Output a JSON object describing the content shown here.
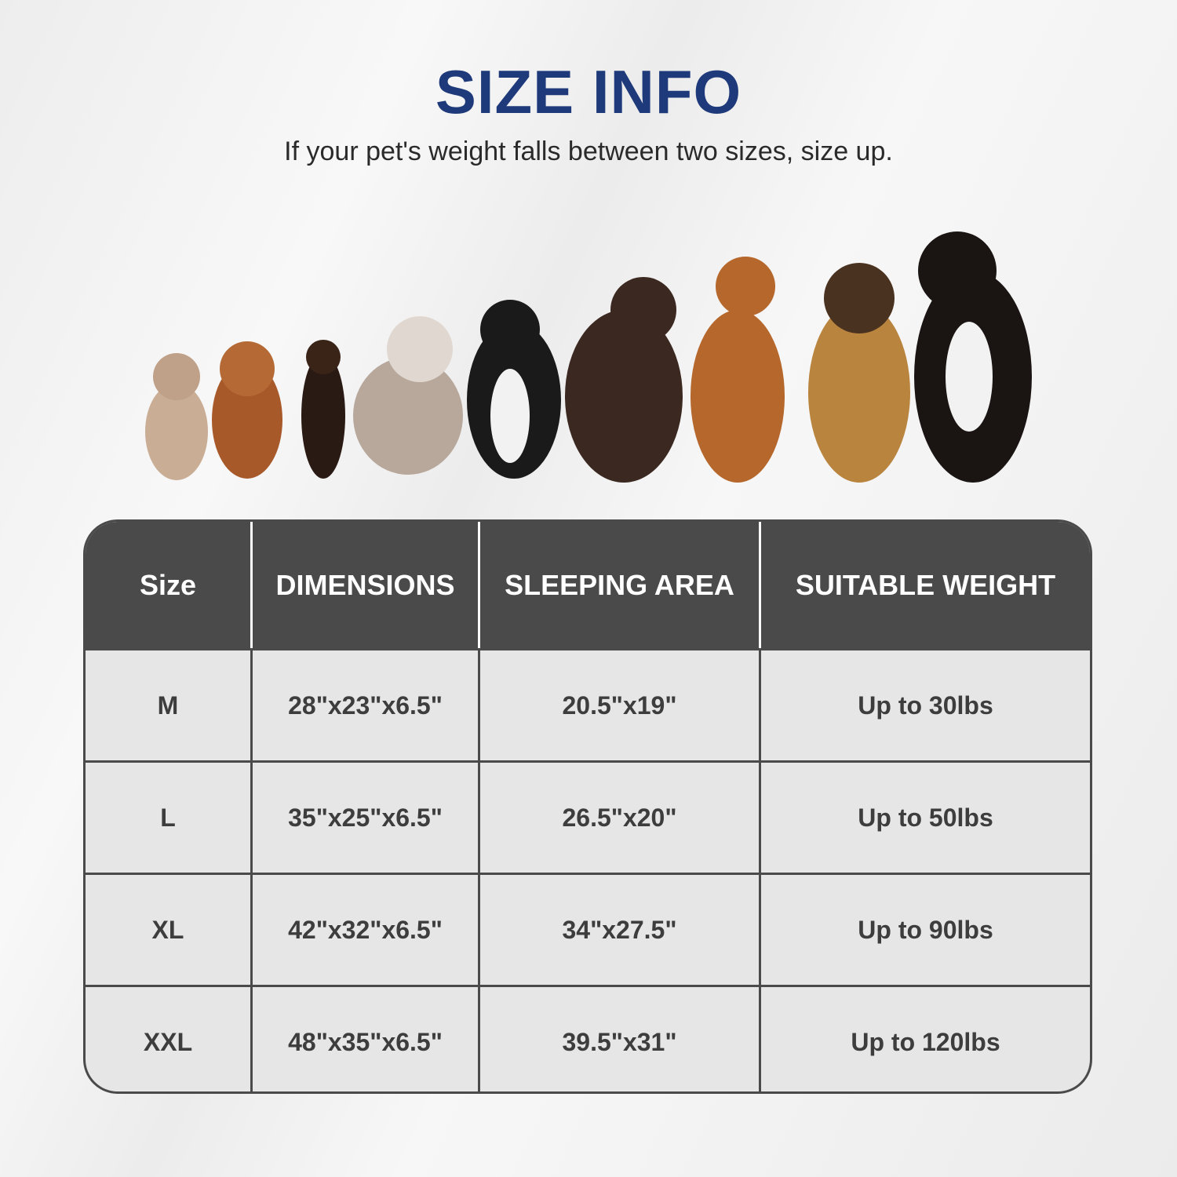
{
  "title": "SIZE INFO",
  "subtitle": "If your pet's weight falls between two sizes, size up.",
  "colors": {
    "title": "#1f3a7a",
    "header_bg": "#4a4a4a",
    "cell_bg": "#e6e6e6"
  },
  "table": {
    "headers": [
      "Size",
      "DIMENSIONS",
      "SLEEPING AREA",
      "SUITABLE WEIGHT"
    ],
    "rows": [
      [
        "M",
        "28\"x23\"x6.5\"",
        "20.5\"x19\"",
        "Up to 30lbs"
      ],
      [
        "L",
        "35\"x25\"x6.5\"",
        "26.5\"x20\"",
        "Up to 50lbs"
      ],
      [
        "XL",
        "42\"x32\"x6.5\"",
        "34\"x27.5\"",
        "Up to 90lbs"
      ],
      [
        "XXL",
        "48\"x35\"x6.5\"",
        "39.5\"x31\"",
        "Up to 120lbs"
      ]
    ]
  }
}
